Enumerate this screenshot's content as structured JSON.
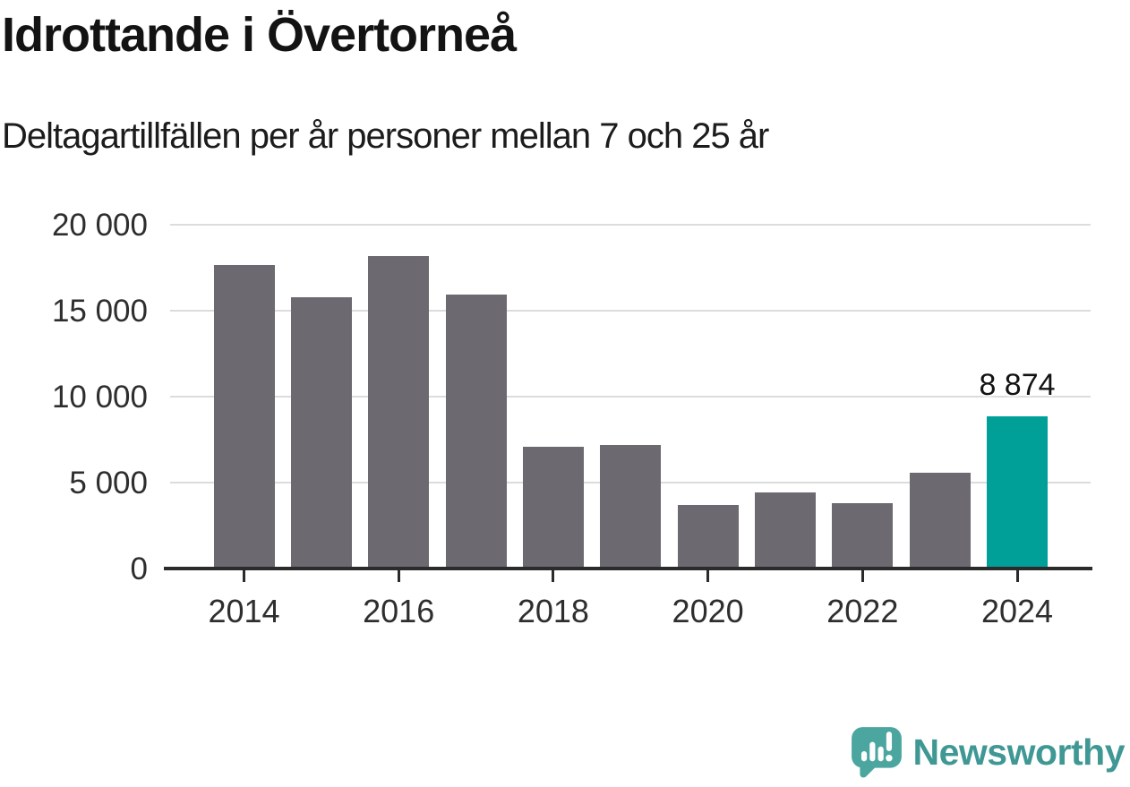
{
  "header": {
    "title": "Idrottande i Övertorneå",
    "subtitle": "Deltagartillfällen per år personer mellan 7 och 25 år"
  },
  "chart_data": {
    "type": "bar",
    "title": "Idrottande i Övertorneå",
    "subtitle": "Deltagartillfällen per år personer mellan 7 och 25 år",
    "categories": [
      "2014",
      "2015",
      "2016",
      "2017",
      "2018",
      "2019",
      "2020",
      "2021",
      "2022",
      "2023",
      "2024"
    ],
    "values": [
      17650,
      15800,
      18200,
      15950,
      7100,
      7200,
      3700,
      4430,
      3820,
      5550,
      8874
    ],
    "highlight": {
      "category": "2024",
      "value": 8874,
      "label": "8 874"
    },
    "ylim": [
      0,
      20000
    ],
    "yticks": [
      0,
      5000,
      10000,
      15000,
      20000
    ],
    "ytick_labels": [
      "0",
      "5 000",
      "10 000",
      "15 000",
      "20 000"
    ],
    "xtick_labels": [
      "2014",
      "2016",
      "2018",
      "2020",
      "2022",
      "2024"
    ],
    "grid": "horizontal",
    "legend": "none",
    "colors": {
      "bar": "#6c6970",
      "highlight": "#00a099",
      "grid": "#dcdcdc",
      "axis": "#2b2b2b",
      "text": "#2e2e2e"
    }
  },
  "footer": {
    "brand": "Newsworthy",
    "logo_color": "#4ba69f",
    "brand_text_color": "#3f9894"
  }
}
